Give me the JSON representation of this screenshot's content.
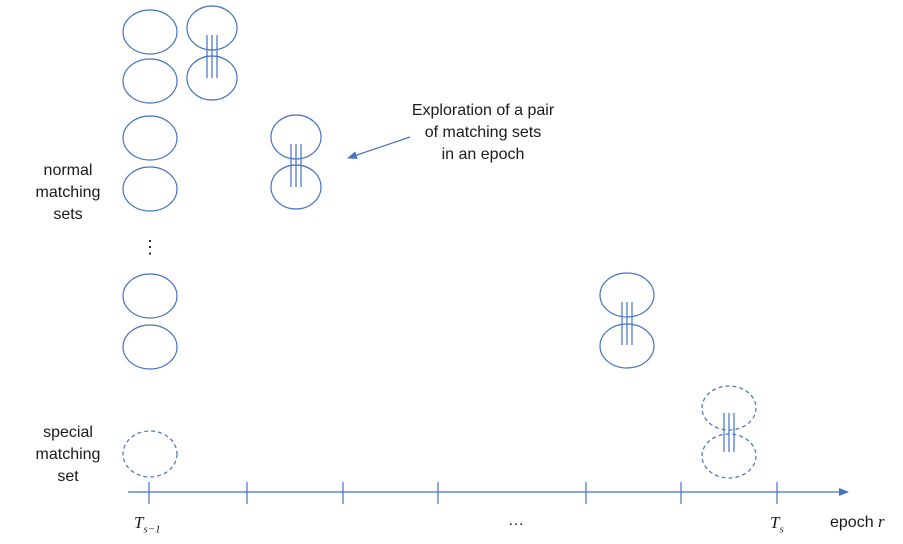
{
  "labels": {
    "normal_sets": [
      "normal",
      "matching",
      "sets"
    ],
    "special_set": [
      "special",
      "matching",
      "set"
    ],
    "vertical_ellipsis": "⋮",
    "callout": [
      "Exploration of a pair",
      "of matching sets",
      "in an epoch"
    ],
    "axis_ellipsis": "…",
    "tick_start_base": "T",
    "tick_start_sub": "s−1",
    "tick_end_base": "T",
    "tick_end_sub": "s",
    "axis_label_text": "epoch",
    "axis_label_var": "r"
  },
  "colors": {
    "stroke": "#4472C4",
    "text": "#1a1a1a"
  }
}
